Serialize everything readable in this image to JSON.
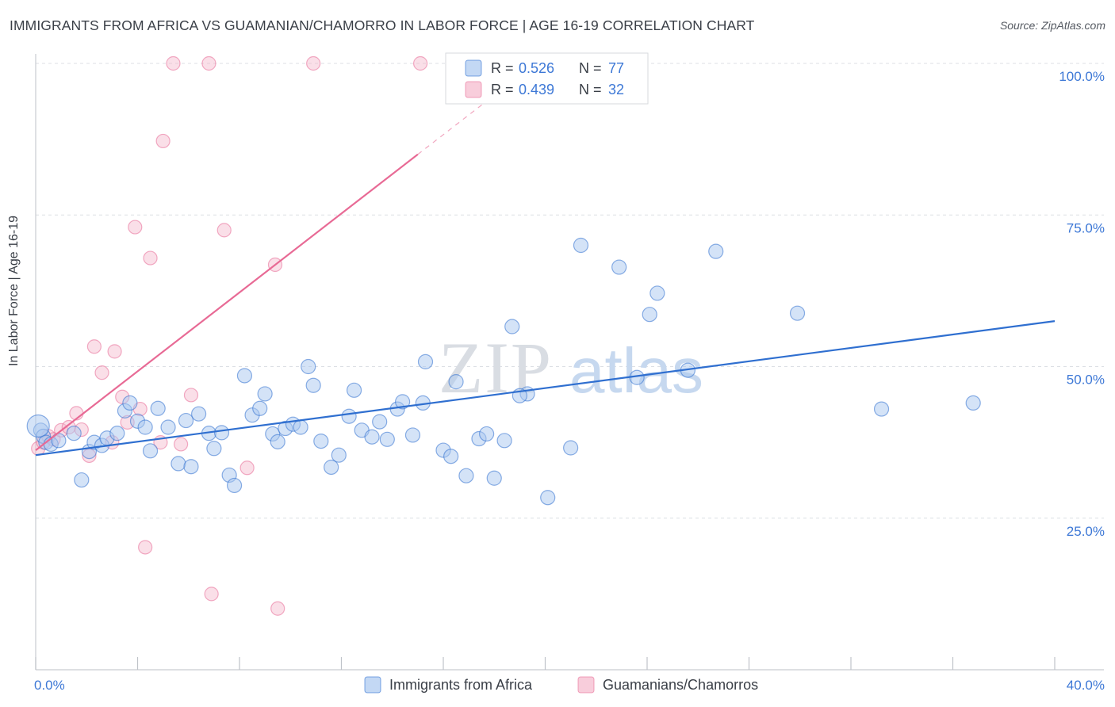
{
  "header": {
    "title": "IMMIGRANTS FROM AFRICA VS GUAMANIAN/CHAMORRO IN LABOR FORCE | AGE 16-19 CORRELATION CHART",
    "source": "Source: ZipAtlas.com"
  },
  "watermark": {
    "zip": "ZIP",
    "atlas": "atlas"
  },
  "colors": {
    "blue": "#a9c8ef",
    "blue_line": "#2f6fd0",
    "pink": "#f5b8cc",
    "pink_line": "#e86a95",
    "tick_label": "#3d78d6",
    "grid": "#dcdfe4",
    "text": "#3a3f47"
  },
  "chart_data": {
    "type": "scatter",
    "title": "IMMIGRANTS FROM AFRICA VS GUAMANIAN/CHAMORRO IN LABOR FORCE | AGE 16-19 CORRELATION CHART",
    "xlabel": "",
    "ylabel": "In Labor Force | Age 16-19",
    "xlim": [
      0,
      40
    ],
    "ylim": [
      0,
      100
    ],
    "x_tick_labels": [
      "0.0%",
      "40.0%"
    ],
    "y_ticks": [
      25,
      50,
      75,
      100
    ],
    "y_tick_labels": [
      "25.0%",
      "50.0%",
      "75.0%",
      "100.0%"
    ],
    "legend_top": [
      {
        "r_label": "R = ",
        "r_value": "0.526",
        "n_label": "N = ",
        "n_value": "77"
      },
      {
        "r_label": "R = ",
        "r_value": "0.439",
        "n_label": "N = ",
        "n_value": "32"
      }
    ],
    "series": [
      {
        "name": "Immigrants from Africa",
        "color": "#a9c8ef",
        "trend": {
          "x0": 0,
          "y0": 35.4,
          "x1": 40,
          "y1": 57.5
        },
        "points": [
          [
            0.2,
            39.5
          ],
          [
            0.3,
            38.5
          ],
          [
            0.4,
            37.5
          ],
          [
            0.6,
            37.2
          ],
          [
            0.9,
            37.8
          ],
          [
            1.5,
            39.0
          ],
          [
            1.8,
            31.3
          ],
          [
            2.1,
            36.0
          ],
          [
            2.3,
            37.5
          ],
          [
            2.6,
            37.0
          ],
          [
            2.8,
            38.2
          ],
          [
            3.2,
            39.0
          ],
          [
            3.5,
            42.7
          ],
          [
            3.7,
            44.0
          ],
          [
            4.0,
            41.0
          ],
          [
            4.3,
            40.0
          ],
          [
            4.5,
            36.1
          ],
          [
            4.8,
            43.1
          ],
          [
            5.2,
            40.0
          ],
          [
            5.6,
            34.0
          ],
          [
            5.9,
            41.1
          ],
          [
            6.1,
            33.5
          ],
          [
            6.4,
            42.2
          ],
          [
            6.8,
            39.0
          ],
          [
            7.0,
            36.5
          ],
          [
            7.3,
            39.1
          ],
          [
            7.6,
            32.1
          ],
          [
            7.8,
            30.4
          ],
          [
            8.2,
            48.5
          ],
          [
            8.5,
            42.0
          ],
          [
            8.8,
            43.1
          ],
          [
            9.0,
            45.5
          ],
          [
            9.3,
            38.9
          ],
          [
            9.5,
            37.6
          ],
          [
            9.8,
            39.8
          ],
          [
            10.1,
            40.5
          ],
          [
            10.4,
            40.0
          ],
          [
            10.7,
            50.0
          ],
          [
            10.9,
            46.9
          ],
          [
            11.2,
            37.7
          ],
          [
            11.6,
            33.4
          ],
          [
            11.9,
            35.4
          ],
          [
            12.3,
            41.8
          ],
          [
            12.5,
            46.1
          ],
          [
            12.8,
            39.5
          ],
          [
            13.2,
            38.4
          ],
          [
            13.5,
            40.9
          ],
          [
            13.8,
            38.0
          ],
          [
            14.2,
            43.0
          ],
          [
            14.4,
            44.2
          ],
          [
            14.8,
            38.7
          ],
          [
            15.2,
            44.0
          ],
          [
            15.3,
            50.8
          ],
          [
            16.0,
            36.2
          ],
          [
            16.3,
            35.2
          ],
          [
            16.5,
            47.5
          ],
          [
            16.9,
            32.0
          ],
          [
            17.4,
            38.1
          ],
          [
            17.7,
            38.9
          ],
          [
            18.0,
            31.6
          ],
          [
            18.4,
            37.8
          ],
          [
            18.7,
            56.6
          ],
          [
            19.3,
            45.5
          ],
          [
            19.0,
            45.2
          ],
          [
            20.1,
            28.4
          ],
          [
            21.0,
            36.6
          ],
          [
            21.4,
            70.0
          ],
          [
            22.9,
            66.4
          ],
          [
            23.6,
            48.2
          ],
          [
            24.1,
            58.6
          ],
          [
            24.4,
            62.1
          ],
          [
            25.6,
            49.4
          ],
          [
            26.7,
            69.0
          ],
          [
            29.9,
            58.8
          ],
          [
            33.2,
            43.0
          ],
          [
            36.8,
            44.0
          ],
          [
            0.1,
            40.2
          ]
        ]
      },
      {
        "name": "Guamanians/Chamorros",
        "color": "#f5b8cc",
        "trend": {
          "x0": 0,
          "y0": 36.2,
          "x1": 15.0,
          "y1": 85.0,
          "dash_x1": 19.0,
          "dash_y1": 98.0
        },
        "points": [
          [
            0.1,
            36.5
          ],
          [
            0.3,
            37.5
          ],
          [
            0.5,
            38.5
          ],
          [
            0.7,
            38.0
          ],
          [
            1.0,
            39.5
          ],
          [
            1.3,
            40.0
          ],
          [
            1.6,
            42.3
          ],
          [
            1.8,
            39.6
          ],
          [
            2.1,
            35.3
          ],
          [
            2.3,
            53.3
          ],
          [
            2.6,
            49.0
          ],
          [
            3.0,
            37.5
          ],
          [
            3.1,
            52.5
          ],
          [
            3.4,
            45.0
          ],
          [
            3.6,
            40.8
          ],
          [
            3.9,
            73.0
          ],
          [
            4.1,
            43.0
          ],
          [
            4.3,
            20.2
          ],
          [
            4.5,
            67.9
          ],
          [
            4.9,
            37.5
          ],
          [
            5.0,
            87.2
          ],
          [
            5.4,
            100.0
          ],
          [
            5.7,
            37.2
          ],
          [
            6.1,
            45.3
          ],
          [
            6.8,
            100.0
          ],
          [
            6.9,
            12.5
          ],
          [
            7.4,
            72.5
          ],
          [
            8.3,
            33.3
          ],
          [
            9.4,
            66.8
          ],
          [
            9.5,
            10.1
          ],
          [
            10.9,
            100.0
          ],
          [
            15.1,
            100.0
          ]
        ]
      }
    ]
  },
  "legend_bottom": [
    "Immigrants from Africa",
    "Guamanians/Chamorros"
  ]
}
